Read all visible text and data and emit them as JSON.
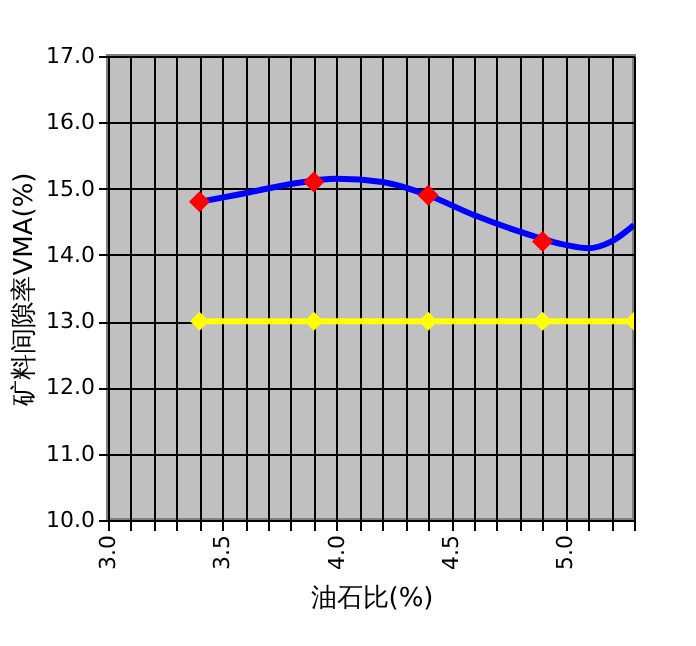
{
  "chart_data": {
    "type": "line",
    "xlabel": "油石比(%)",
    "ylabel": "矿料间隙率VMA(%)",
    "xlim": [
      3.0,
      5.3
    ],
    "xticks": [
      {
        "value": 3.0,
        "label": "3.0"
      },
      {
        "value": 3.1,
        "label": null
      },
      {
        "value": 3.2,
        "label": null
      },
      {
        "value": 3.3,
        "label": null
      },
      {
        "value": 3.4,
        "label": null
      },
      {
        "value": 3.5,
        "label": "3.5"
      },
      {
        "value": 3.6,
        "label": null
      },
      {
        "value": 3.7,
        "label": null
      },
      {
        "value": 3.8,
        "label": null
      },
      {
        "value": 3.9,
        "label": null
      },
      {
        "value": 4.0,
        "label": "4.0"
      },
      {
        "value": 4.1,
        "label": null
      },
      {
        "value": 4.2,
        "label": null
      },
      {
        "value": 4.3,
        "label": null
      },
      {
        "value": 4.4,
        "label": null
      },
      {
        "value": 4.5,
        "label": "4.5"
      },
      {
        "value": 4.6,
        "label": null
      },
      {
        "value": 4.7,
        "label": null
      },
      {
        "value": 4.8,
        "label": null
      },
      {
        "value": 4.9,
        "label": null
      },
      {
        "value": 5.0,
        "label": "5.0"
      },
      {
        "value": 5.1,
        "label": null
      },
      {
        "value": 5.2,
        "label": null
      },
      {
        "value": 5.3,
        "label": null
      }
    ],
    "ylim": [
      10.0,
      17.0
    ],
    "yticks": [
      {
        "value": 10,
        "label": "10.0"
      },
      {
        "value": 11,
        "label": "11.0"
      },
      {
        "value": 12,
        "label": "12.0"
      },
      {
        "value": 13,
        "label": "13.0"
      },
      {
        "value": 14,
        "label": "14.0"
      },
      {
        "value": 15,
        "label": "15.0"
      },
      {
        "value": 16,
        "label": "16.0"
      },
      {
        "value": 17,
        "label": "17.0"
      }
    ],
    "grid": true,
    "series": [
      {
        "color": "#0000ff",
        "marker": "none",
        "line_style": "solid",
        "x": [
          3.4,
          3.6,
          3.8,
          4.0,
          4.2,
          4.4,
          4.6,
          4.8,
          5.0,
          5.1,
          5.2,
          5.3
        ],
        "values": [
          14.8,
          14.93,
          15.07,
          15.15,
          15.1,
          14.9,
          14.6,
          14.35,
          14.15,
          14.1,
          14.2,
          14.45
        ]
      },
      {
        "type": "scatter",
        "color": "#ff0000",
        "marker": "diamond",
        "x": [
          3.4,
          3.9,
          4.4,
          4.9
        ],
        "values": [
          14.8,
          15.1,
          14.9,
          14.2
        ]
      },
      {
        "color": "#ffff00",
        "marker": "diamond",
        "line_style": "solid",
        "x": [
          3.4,
          3.9,
          4.4,
          4.9,
          5.3
        ],
        "values": [
          13.0,
          13.0,
          13.0,
          13.0,
          13.0
        ]
      }
    ]
  }
}
